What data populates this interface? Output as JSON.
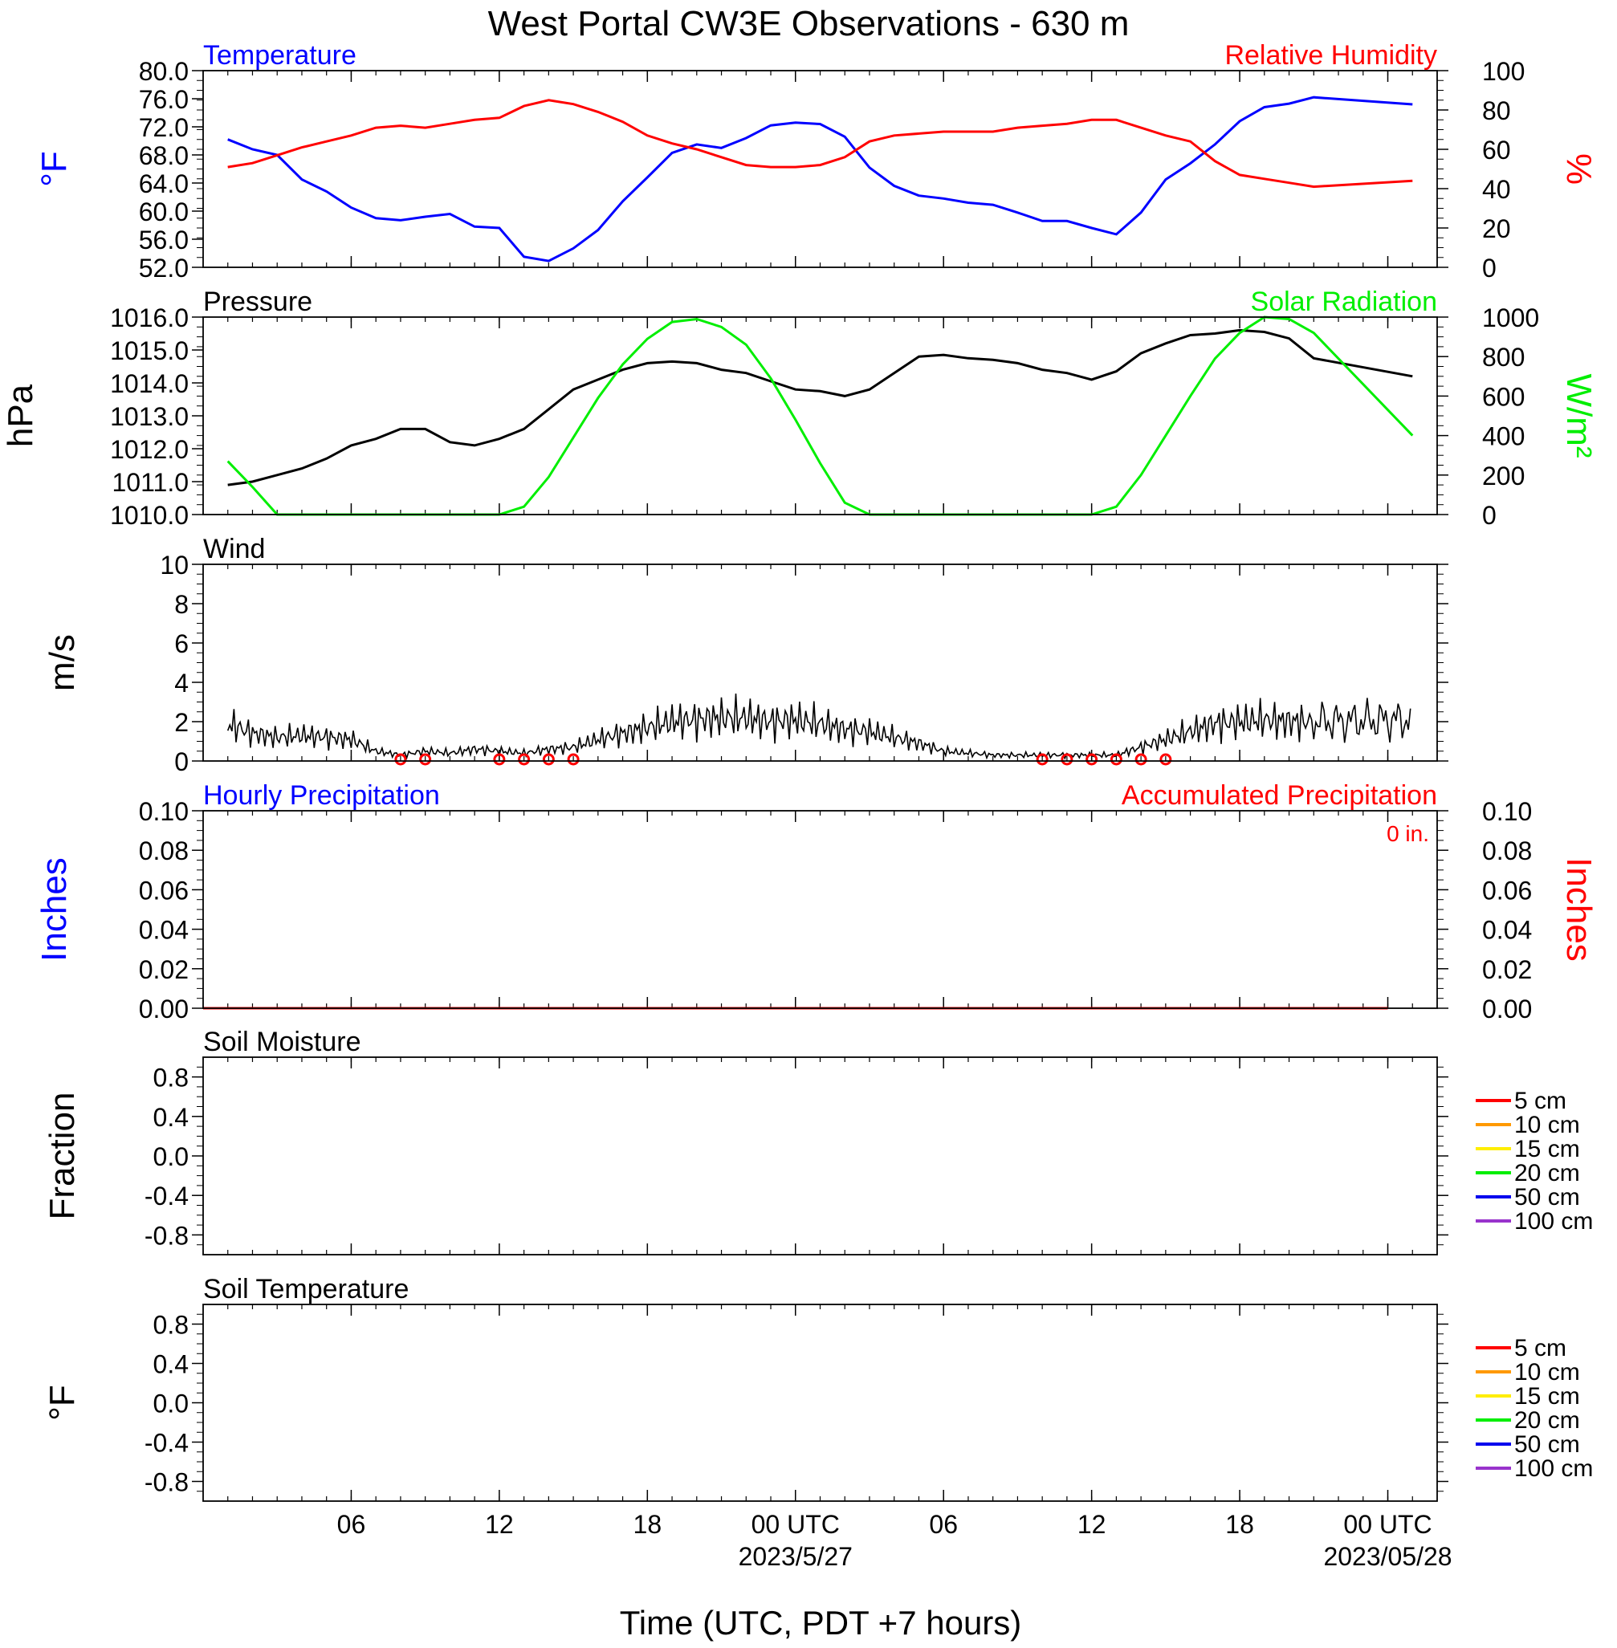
{
  "title": "West Portal CW3E Observations - 630 m",
  "x_axis": {
    "label": "Time (UTC, PDT +7 hours)",
    "ticks": [
      "06",
      "12",
      "18",
      "00 UTC",
      "06",
      "12",
      "18",
      "00 UTC"
    ],
    "date_labels": [
      "2023/5/27",
      "2023/05/28"
    ]
  },
  "colors": {
    "temperature": "#0000ff",
    "humidity": "#ff0000",
    "pressure": "#000000",
    "solar": "#00ee00",
    "wind": "#000000",
    "wind_barb": "#ff0000",
    "soil_5": "#ff0000",
    "soil_10": "#ff9900",
    "soil_15": "#ffee00",
    "soil_20": "#00ee00",
    "soil_50": "#0000ee",
    "soil_100": "#9933cc"
  },
  "chart_data": [
    {
      "type": "line",
      "panel": "temperature-humidity",
      "title_left": "Temperature",
      "title_right": "Relative Humidity",
      "ylabel_left": "°F",
      "ylabel_right": "%",
      "ylim_left": [
        52.0,
        80.0
      ],
      "ylim_right": [
        0,
        100
      ],
      "left_ticks": [
        "52.0",
        "56.0",
        "60.0",
        "64.0",
        "68.0",
        "72.0",
        "76.0",
        "80.0"
      ],
      "right_ticks": [
        "0",
        "20",
        "40",
        "60",
        "80",
        "100"
      ],
      "x_hours": [
        1,
        2,
        3,
        4,
        5,
        6,
        7,
        8,
        9,
        10,
        11,
        12,
        13,
        14,
        15,
        16,
        17,
        18,
        19,
        20,
        21,
        22,
        23,
        24,
        25,
        26,
        27,
        28,
        29,
        30,
        31,
        32,
        33,
        34,
        35,
        36,
        37,
        38,
        39,
        40,
        41,
        42,
        43,
        44,
        45,
        49
      ],
      "series": [
        {
          "name": "Temperature",
          "axis": "left",
          "values": [
            70.2,
            68.8,
            68.0,
            64.5,
            62.8,
            60.5,
            59.0,
            58.7,
            59.2,
            59.6,
            57.8,
            57.6,
            53.5,
            52.9,
            54.7,
            57.3,
            61.4,
            64.8,
            68.3,
            69.5,
            69.0,
            70.4,
            72.2,
            72.6,
            72.4,
            70.6,
            66.2,
            63.6,
            62.2,
            61.8,
            61.2,
            60.9,
            59.8,
            58.6,
            58.6,
            57.6,
            56.7,
            59.8,
            64.5,
            66.8,
            69.5,
            72.8,
            74.8,
            75.3,
            76.2,
            75.2
          ]
        },
        {
          "name": "Relative Humidity",
          "axis": "right",
          "values": [
            51,
            53,
            57,
            61,
            64,
            67,
            71,
            72,
            71,
            73,
            75,
            76,
            82,
            85,
            83,
            79,
            74,
            67,
            63,
            60,
            56,
            52,
            51,
            51,
            52,
            56,
            64,
            67,
            68,
            69,
            69,
            69,
            71,
            72,
            73,
            75,
            75,
            71,
            67,
            64,
            54,
            47,
            45,
            43,
            41,
            44
          ]
        }
      ]
    },
    {
      "type": "line",
      "panel": "pressure-solar",
      "title_left": "Pressure",
      "title_right": "Solar Radiation",
      "ylabel_left": "hPa",
      "ylabel_right": "W/m²",
      "ylim_left": [
        1010.0,
        1016.0
      ],
      "ylim_right": [
        0,
        1000
      ],
      "left_ticks": [
        "1010.0",
        "1011.0",
        "1012.0",
        "1013.0",
        "1014.0",
        "1015.0",
        "1016.0"
      ],
      "right_ticks": [
        "0",
        "200",
        "400",
        "600",
        "800",
        "1000"
      ],
      "x_hours": [
        1,
        2,
        3,
        4,
        5,
        6,
        7,
        8,
        9,
        10,
        11,
        12,
        13,
        14,
        15,
        16,
        17,
        18,
        19,
        20,
        21,
        22,
        23,
        24,
        25,
        26,
        27,
        28,
        29,
        30,
        31,
        32,
        33,
        34,
        35,
        36,
        37,
        38,
        39,
        40,
        41,
        42,
        43,
        44,
        45,
        49
      ],
      "series": [
        {
          "name": "Pressure",
          "axis": "left",
          "values": [
            1010.9,
            1011.0,
            1011.2,
            1011.4,
            1011.7,
            1012.1,
            1012.3,
            1012.6,
            1012.6,
            1012.2,
            1012.1,
            1012.3,
            1012.6,
            1013.2,
            1013.8,
            1014.1,
            1014.4,
            1014.6,
            1014.65,
            1014.6,
            1014.4,
            1014.3,
            1014.05,
            1013.8,
            1013.75,
            1013.6,
            1013.8,
            1014.3,
            1014.8,
            1014.85,
            1014.75,
            1014.7,
            1014.6,
            1014.4,
            1014.3,
            1014.1,
            1014.35,
            1014.9,
            1015.2,
            1015.45,
            1015.5,
            1015.6,
            1015.55,
            1015.35,
            1014.75,
            1014.2
          ]
        },
        {
          "name": "Solar Radiation",
          "axis": "right",
          "values": [
            270,
            140,
            0,
            0,
            0,
            0,
            0,
            0,
            0,
            0,
            0,
            0,
            40,
            190,
            390,
            590,
            760,
            890,
            975,
            990,
            950,
            860,
            690,
            480,
            260,
            60,
            0,
            0,
            0,
            0,
            0,
            0,
            0,
            0,
            0,
            0,
            40,
            200,
            400,
            600,
            790,
            920,
            1000,
            990,
            920,
            400
          ]
        }
      ]
    },
    {
      "type": "line",
      "panel": "wind",
      "title_left": "Wind",
      "ylabel_left": "m/s",
      "ylim_left": [
        0,
        10
      ],
      "left_ticks": [
        "0",
        "2",
        "4",
        "6",
        "8",
        "10"
      ],
      "x_hours": [
        1,
        2,
        3,
        4,
        5,
        6,
        7,
        8,
        9,
        10,
        11,
        12,
        13,
        14,
        15,
        16,
        17,
        18,
        19,
        20,
        21,
        22,
        23,
        24,
        25,
        26,
        27,
        28,
        29,
        30,
        31,
        32,
        33,
        34,
        35,
        36,
        37,
        38,
        39,
        40,
        41,
        42,
        43,
        44,
        45,
        49
      ],
      "series": [
        {
          "name": "Wind",
          "axis": "left",
          "values": [
            1.9,
            1.4,
            1.2,
            1.3,
            1.2,
            1.1,
            0.5,
            0.3,
            0.5,
            0.4,
            0.6,
            0.5,
            0.4,
            0.6,
            0.7,
            1.1,
            1.4,
            1.7,
            2.0,
            2.1,
            2.2,
            2.2,
            2.0,
            2.1,
            1.9,
            1.6,
            1.5,
            1.2,
            0.9,
            0.5,
            0.4,
            0.3,
            0.3,
            0.3,
            0.3,
            0.3,
            0.3,
            0.7,
            1.1,
            1.5,
            1.9,
            2.0,
            2.1,
            2.0,
            2.0,
            2.1
          ]
        }
      ],
      "calm_markers_hours": [
        8,
        9,
        12,
        13,
        14,
        15,
        34,
        35,
        36,
        37,
        38,
        39
      ]
    },
    {
      "type": "line",
      "panel": "precipitation",
      "title_left": "Hourly Precipitation",
      "title_right": "Accumulated Precipitation",
      "annotation": "0 in.",
      "ylabel_left": "Inches",
      "ylabel_right": "Inches",
      "ylim_left": [
        0,
        0.1
      ],
      "ylim_right": [
        0,
        0.1
      ],
      "left_ticks": [
        "0.00",
        "0.02",
        "0.04",
        "0.06",
        "0.08",
        "0.10"
      ],
      "right_ticks": [
        "0.00",
        "0.02",
        "0.04",
        "0.06",
        "0.08",
        "0.10"
      ],
      "x_hours": [
        0,
        48
      ],
      "series": [
        {
          "name": "Hourly Precipitation",
          "axis": "left",
          "values": [
            0,
            0
          ]
        },
        {
          "name": "Accumulated Precipitation",
          "axis": "right",
          "values": [
            0,
            0
          ]
        }
      ]
    },
    {
      "type": "line",
      "panel": "soil-moisture",
      "title_left": "Soil Moisture",
      "ylabel_left": "Fraction",
      "ylim_left": [
        -1,
        1
      ],
      "left_ticks": [
        "-0.8",
        "-0.4",
        "0.0",
        "0.4",
        "0.8"
      ],
      "series": [],
      "legend": [
        "5 cm",
        "10 cm",
        "15 cm",
        "20 cm",
        "50 cm",
        "100 cm"
      ]
    },
    {
      "type": "line",
      "panel": "soil-temperature",
      "title_left": "Soil Temperature",
      "ylabel_left": "°F",
      "ylim_left": [
        -1,
        1
      ],
      "left_ticks": [
        "-0.8",
        "-0.4",
        "0.0",
        "0.4",
        "0.8"
      ],
      "series": [],
      "legend": [
        "5 cm",
        "10 cm",
        "15 cm",
        "20 cm",
        "50 cm",
        "100 cm"
      ]
    }
  ]
}
